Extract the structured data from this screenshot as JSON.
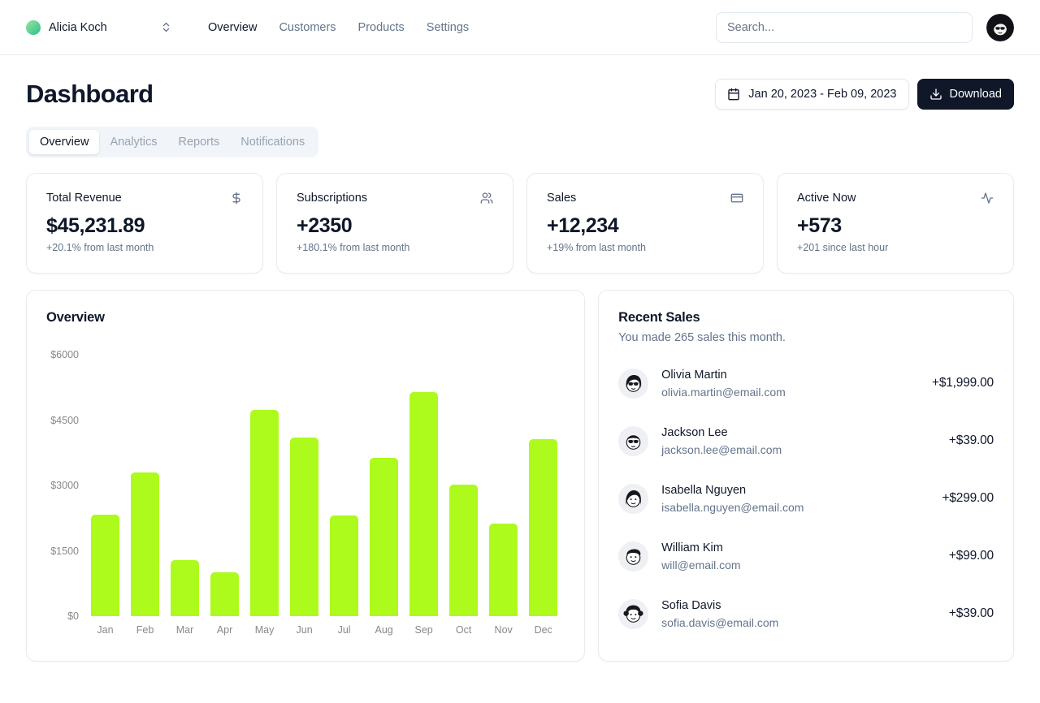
{
  "header": {
    "team": "Alicia Koch",
    "search_placeholder": "Search...",
    "nav": [
      {
        "label": "Overview",
        "active": true
      },
      {
        "label": "Customers"
      },
      {
        "label": "Products"
      },
      {
        "label": "Settings"
      }
    ]
  },
  "page": {
    "title": "Dashboard",
    "date_range": "Jan 20, 2023 - Feb 09, 2023",
    "download_label": "Download",
    "tabs": [
      {
        "label": "Overview",
        "active": true
      },
      {
        "label": "Analytics"
      },
      {
        "label": "Reports"
      },
      {
        "label": "Notifications"
      }
    ]
  },
  "stats": [
    {
      "label": "Total Revenue",
      "icon": "dollar-sign-icon",
      "value": "$45,231.89",
      "change": "+20.1% from last month"
    },
    {
      "label": "Subscriptions",
      "icon": "users-icon",
      "value": "+2350",
      "change": "+180.1% from last month"
    },
    {
      "label": "Sales",
      "icon": "credit-card-icon",
      "value": "+12,234",
      "change": "+19% from last month"
    },
    {
      "label": "Active Now",
      "icon": "activity-icon",
      "value": "+573",
      "change": "+201 since last hour"
    }
  ],
  "chart_data": {
    "type": "bar",
    "title": "Overview",
    "categories": [
      "Jan",
      "Feb",
      "Mar",
      "Apr",
      "May",
      "Jun",
      "Jul",
      "Aug",
      "Sep",
      "Oct",
      "Nov",
      "Dec"
    ],
    "values": [
      2320,
      3300,
      1290,
      1010,
      4740,
      4100,
      2310,
      3640,
      5150,
      3020,
      2130,
      4060
    ],
    "xlabel": "",
    "ylabel": "",
    "ylim": [
      0,
      6000
    ],
    "y_ticks": [
      "$6000",
      "$4500",
      "$3000",
      "$1500",
      "$0"
    ],
    "grid": false,
    "legend": false,
    "bar_color": "#adfa1d"
  },
  "recent_sales": {
    "title": "Recent Sales",
    "subtitle": "You made 265 sales this month.",
    "items": [
      {
        "name": "Olivia Martin",
        "email": "olivia.martin@email.com",
        "amount": "+$1,999.00"
      },
      {
        "name": "Jackson Lee",
        "email": "jackson.lee@email.com",
        "amount": "+$39.00"
      },
      {
        "name": "Isabella Nguyen",
        "email": "isabella.nguyen@email.com",
        "amount": "+$299.00"
      },
      {
        "name": "William Kim",
        "email": "will@email.com",
        "amount": "+$99.00"
      },
      {
        "name": "Sofia Davis",
        "email": "sofia.davis@email.com",
        "amount": "+$39.00"
      }
    ]
  }
}
